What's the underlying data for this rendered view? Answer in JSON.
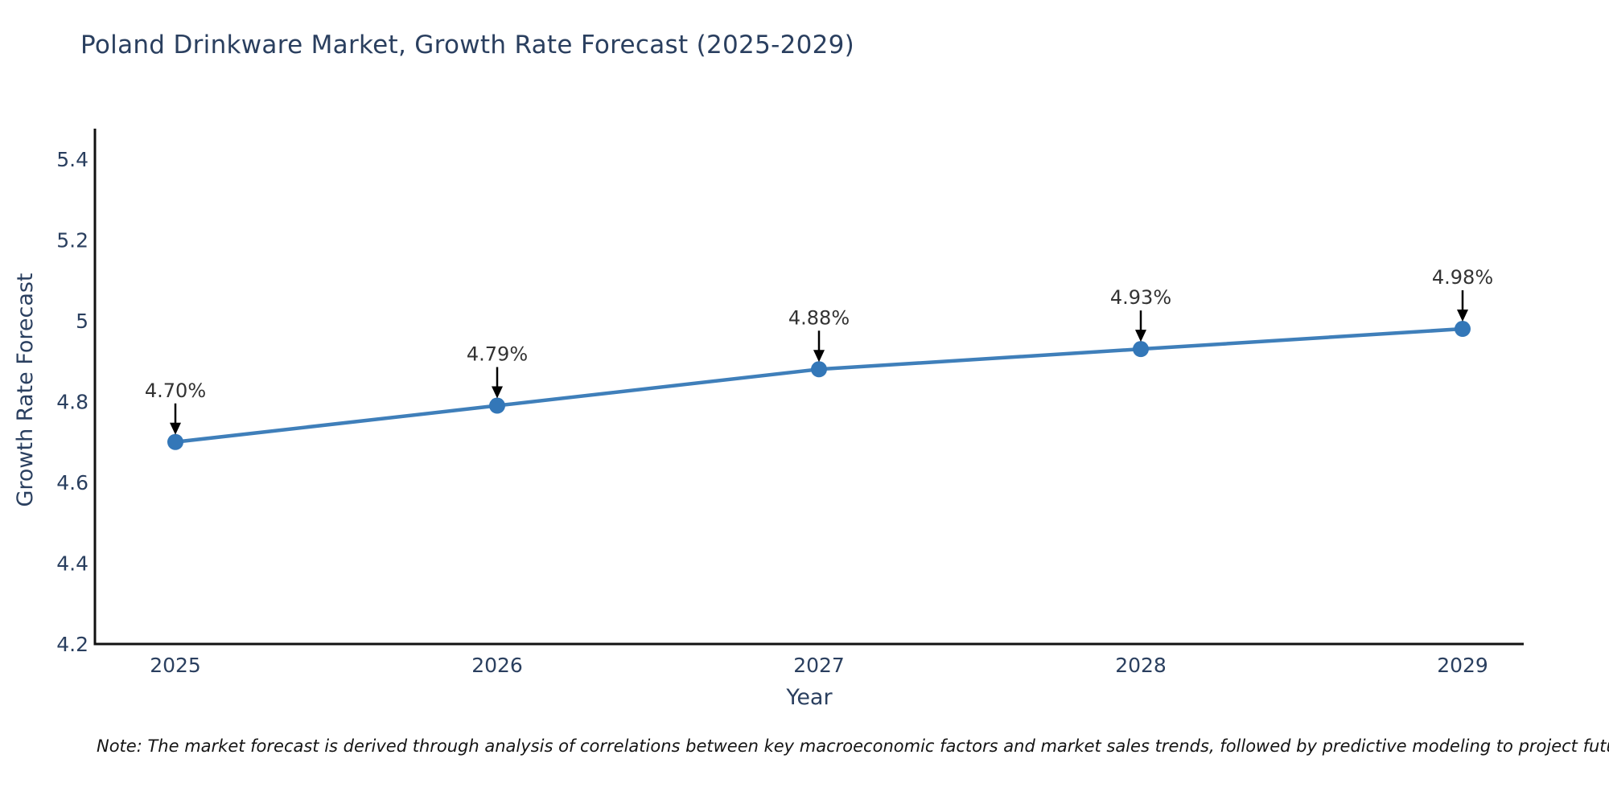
{
  "chart_data": {
    "type": "line",
    "title": "Poland Drinkware Market, Growth Rate Forecast (2025-2029)",
    "xlabel": "Year",
    "ylabel": "Growth Rate Forecast",
    "categories": [
      "2025",
      "2026",
      "2027",
      "2028",
      "2029"
    ],
    "series": [
      {
        "name": "Growth Rate Forecast",
        "values": [
          4.7,
          4.79,
          4.88,
          4.93,
          4.98
        ]
      }
    ],
    "point_labels": [
      "4.70%",
      "4.79%",
      "4.88%",
      "4.93%",
      "4.98%"
    ],
    "ylim": [
      4.2,
      5.4
    ],
    "ytick_labels": [
      "4.2",
      "4.4",
      "4.6",
      "4.8",
      "5",
      "5.2",
      "5.4"
    ],
    "ytick_values": [
      4.2,
      4.4,
      4.6,
      4.8,
      5.0,
      5.2,
      5.4
    ],
    "grid": false,
    "legend_position": "none",
    "annotation_style": "black down arrow from value label to marker",
    "colors": {
      "line": "#3f7fba",
      "marker": "#3377b8",
      "axis": "#111111",
      "axis_text": "#2a3f5f",
      "annotation_text": "#333333",
      "arrow": "#000000",
      "title_text": "#2a3f5f",
      "background": "#ffffff"
    }
  },
  "footnote": "Note: The market forecast is derived through analysis of correlations between key macroeconomic factors and market sales trends, followed by predictive modeling to project future sales performance."
}
